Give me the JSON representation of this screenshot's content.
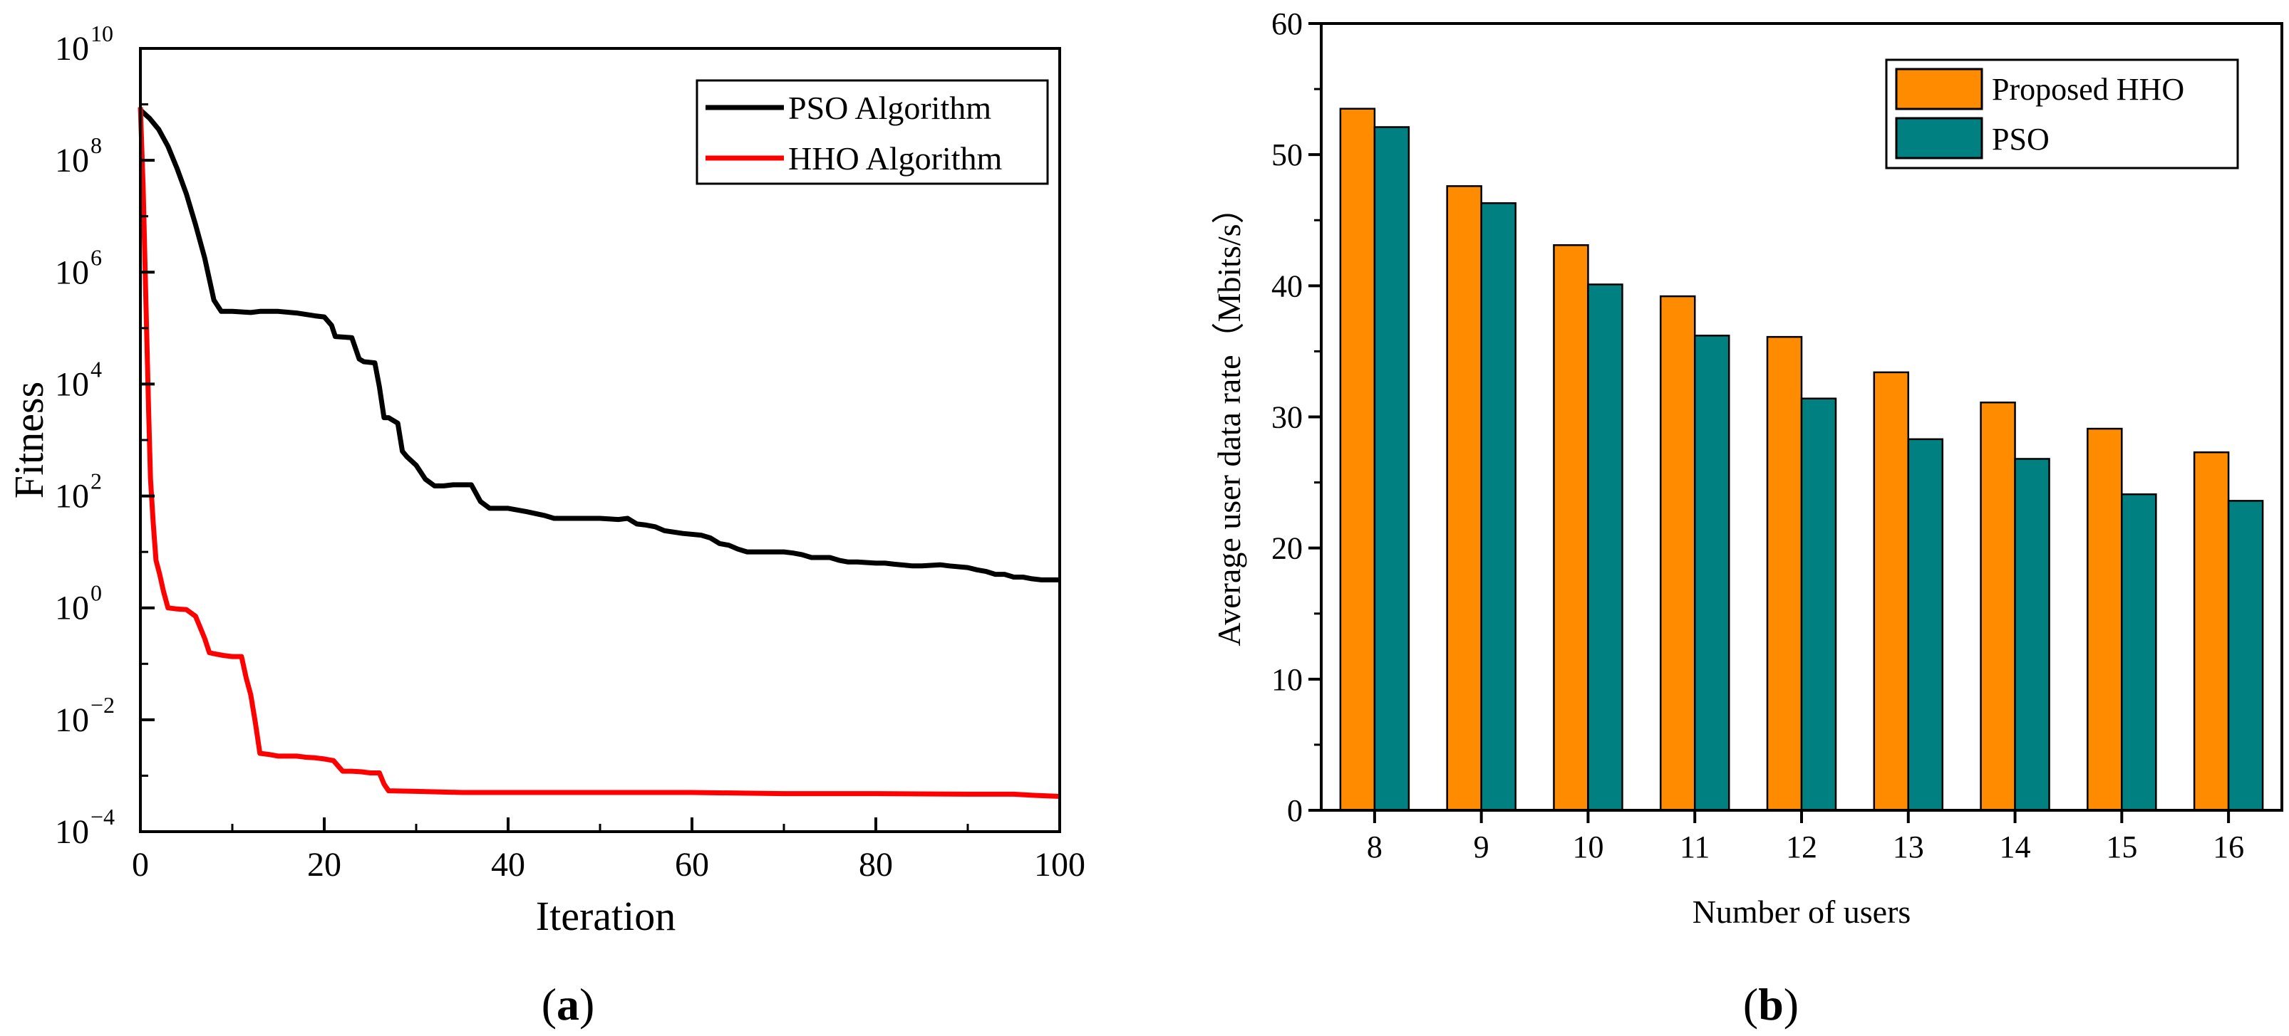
{
  "chart_data": [
    {
      "id": "a",
      "type": "line",
      "caption": "(a)",
      "caption_letter": "a",
      "title": "",
      "xlabel": "Iteration",
      "ylabel": "Fitness",
      "xlim": [
        0,
        100
      ],
      "ylim_log10": [
        -4,
        10
      ],
      "yscale": "log",
      "x_ticks": [
        "0",
        "20",
        "40",
        "60",
        "80",
        "100"
      ],
      "y_ticks": [
        {
          "base": "10",
          "exp": "10"
        },
        {
          "base": "10",
          "exp": "8"
        },
        {
          "base": "10",
          "exp": "6"
        },
        {
          "base": "10",
          "exp": "4"
        },
        {
          "base": "10",
          "exp": "2"
        },
        {
          "base": "10",
          "exp": "0"
        },
        {
          "base": "10",
          "exp": "−2"
        },
        {
          "base": "10",
          "exp": "−4"
        }
      ],
      "legend_position": "top-right",
      "series": [
        {
          "name": "PSO Algorithm",
          "color": "#000000",
          "points": [
            [
              0,
              8.9
            ],
            [
              1,
              8.75
            ],
            [
              2,
              8.55
            ],
            [
              3,
              8.25
            ],
            [
              4,
              7.85
            ],
            [
              5,
              7.4
            ],
            [
              6,
              6.85
            ],
            [
              7,
              6.25
            ],
            [
              8,
              5.5
            ],
            [
              8.8,
              5.3
            ],
            [
              10,
              5.3
            ],
            [
              12,
              5.28
            ],
            [
              13,
              5.3
            ],
            [
              15,
              5.3
            ],
            [
              17,
              5.27
            ],
            [
              19,
              5.22
            ],
            [
              20,
              5.2
            ],
            [
              20.8,
              5.05
            ],
            [
              21.2,
              4.85
            ],
            [
              23,
              4.83
            ],
            [
              23.8,
              4.45
            ],
            [
              24.3,
              4.4
            ],
            [
              25.5,
              4.38
            ],
            [
              26,
              3.95
            ],
            [
              26.5,
              3.4
            ],
            [
              27,
              3.4
            ],
            [
              28,
              3.3
            ],
            [
              28.5,
              2.8
            ],
            [
              29,
              2.7
            ],
            [
              30,
              2.55
            ],
            [
              31,
              2.3
            ],
            [
              32,
              2.18
            ],
            [
              33,
              2.18
            ],
            [
              34,
              2.2
            ],
            [
              35,
              2.2
            ],
            [
              36,
              2.2
            ],
            [
              37,
              1.9
            ],
            [
              38,
              1.78
            ],
            [
              40,
              1.78
            ],
            [
              42,
              1.72
            ],
            [
              44,
              1.65
            ],
            [
              45,
              1.6
            ],
            [
              48,
              1.6
            ],
            [
              50,
              1.6
            ],
            [
              52,
              1.58
            ],
            [
              53,
              1.6
            ],
            [
              54,
              1.5
            ],
            [
              55,
              1.48
            ],
            [
              56,
              1.45
            ],
            [
              57,
              1.38
            ],
            [
              59,
              1.33
            ],
            [
              61,
              1.3
            ],
            [
              62,
              1.25
            ],
            [
              63,
              1.15
            ],
            [
              64,
              1.12
            ],
            [
              65,
              1.05
            ],
            [
              66,
              1.0
            ],
            [
              68,
              1.0
            ],
            [
              70,
              1.0
            ],
            [
              71,
              0.98
            ],
            [
              72,
              0.95
            ],
            [
              73,
              0.9
            ],
            [
              75,
              0.9
            ],
            [
              76,
              0.85
            ],
            [
              77,
              0.82
            ],
            [
              78,
              0.82
            ],
            [
              80,
              0.8
            ],
            [
              81,
              0.8
            ],
            [
              82,
              0.78
            ],
            [
              84,
              0.75
            ],
            [
              85,
              0.75
            ],
            [
              87,
              0.77
            ],
            [
              88,
              0.75
            ],
            [
              90,
              0.72
            ],
            [
              91,
              0.68
            ],
            [
              92,
              0.65
            ],
            [
              93,
              0.6
            ],
            [
              94,
              0.6
            ],
            [
              95,
              0.55
            ],
            [
              96,
              0.55
            ],
            [
              97,
              0.52
            ],
            [
              98,
              0.5
            ],
            [
              100,
              0.5
            ]
          ]
        },
        {
          "name": "HHO Algorithm",
          "color": "#ff0000",
          "points": [
            [
              0,
              8.95
            ],
            [
              0.3,
              7.5
            ],
            [
              0.6,
              5.5
            ],
            [
              0.9,
              3.5
            ],
            [
              1.1,
              2.3
            ],
            [
              1.4,
              1.5
            ],
            [
              1.7,
              0.85
            ],
            [
              2.1,
              0.6
            ],
            [
              2.5,
              0.3
            ],
            [
              3,
              0.0
            ],
            [
              4,
              -0.02
            ],
            [
              5,
              -0.03
            ],
            [
              6,
              -0.15
            ],
            [
              6.5,
              -0.35
            ],
            [
              7,
              -0.55
            ],
            [
              7.5,
              -0.8
            ],
            [
              8,
              -0.82
            ],
            [
              9,
              -0.85
            ],
            [
              10,
              -0.87
            ],
            [
              11,
              -0.87
            ],
            [
              11.5,
              -1.25
            ],
            [
              12,
              -1.55
            ],
            [
              12.5,
              -2.05
            ],
            [
              13,
              -2.6
            ],
            [
              14,
              -2.62
            ],
            [
              15,
              -2.65
            ],
            [
              16,
              -2.65
            ],
            [
              17,
              -2.65
            ],
            [
              18,
              -2.67
            ],
            [
              19,
              -2.68
            ],
            [
              20,
              -2.7
            ],
            [
              21,
              -2.73
            ],
            [
              22,
              -2.92
            ],
            [
              23,
              -2.92
            ],
            [
              24,
              -2.93
            ],
            [
              25,
              -2.95
            ],
            [
              26,
              -2.95
            ],
            [
              26.5,
              -3.15
            ],
            [
              27,
              -3.27
            ],
            [
              30,
              -3.28
            ],
            [
              35,
              -3.3
            ],
            [
              40,
              -3.3
            ],
            [
              45,
              -3.3
            ],
            [
              50,
              -3.3
            ],
            [
              60,
              -3.3
            ],
            [
              70,
              -3.32
            ],
            [
              80,
              -3.32
            ],
            [
              90,
              -3.33
            ],
            [
              95,
              -3.33
            ],
            [
              97,
              -3.35
            ],
            [
              100,
              -3.37
            ]
          ]
        }
      ]
    },
    {
      "id": "b",
      "type": "bar",
      "caption": "(b)",
      "caption_letter": "b",
      "title": "",
      "xlabel": "Number of users",
      "ylabel": "Average user data rate（Mbits/s）",
      "ylim": [
        0,
        60
      ],
      "y_ticks": [
        "0",
        "10",
        "20",
        "30",
        "40",
        "50",
        "60"
      ],
      "categories": [
        "8",
        "9",
        "10",
        "11",
        "12",
        "13",
        "14",
        "15",
        "16"
      ],
      "legend_position": "top-right",
      "series": [
        {
          "name": "Proposed HHO",
          "color": "#ff8c00",
          "values": [
            53.5,
            47.6,
            43.1,
            39.2,
            36.1,
            33.4,
            31.1,
            29.1,
            27.3
          ]
        },
        {
          "name": "PSO",
          "color": "#008080",
          "values": [
            52.1,
            46.3,
            40.1,
            36.2,
            31.4,
            28.3,
            26.8,
            24.1,
            23.6
          ]
        }
      ]
    }
  ]
}
